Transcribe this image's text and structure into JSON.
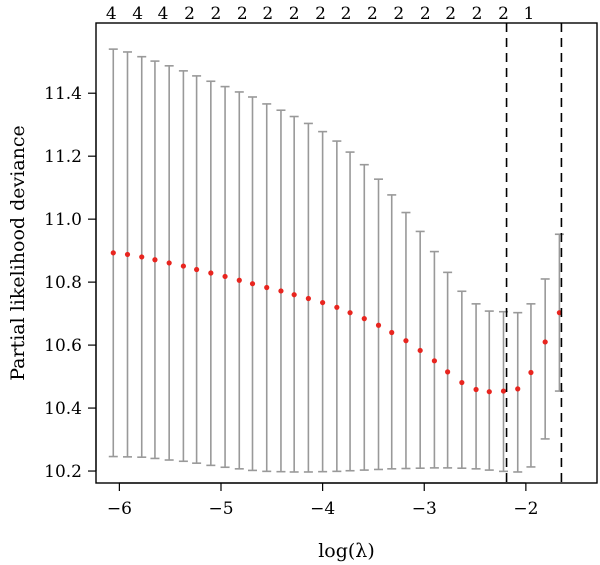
{
  "chart_data": {
    "type": "scatter",
    "title": "",
    "xlabel": "log(λ)",
    "ylabel": "Partial likelihood deviance",
    "xlim": [
      -6.23,
      -1.3
    ],
    "ylim": [
      10.162,
      11.623
    ],
    "x_ticks": [
      -6,
      -5,
      -4,
      -3,
      -2
    ],
    "x_tick_labels": [
      "−6",
      "−5",
      "−4",
      "−3",
      "−2"
    ],
    "y_ticks": [
      10.2,
      10.4,
      10.6,
      10.8,
      11.0,
      11.2,
      11.4
    ],
    "y_tick_labels": [
      "10.2",
      "10.4",
      "10.6",
      "10.8",
      "11.0",
      "11.2",
      "11.4"
    ],
    "top_axis": {
      "positions": [
        -6.08,
        -5.82,
        -5.57,
        -5.31,
        -5.05,
        -4.79,
        -4.54,
        -4.28,
        -4.02,
        -3.77,
        -3.51,
        -3.25,
        -2.99,
        -2.74,
        -2.48,
        -2.22,
        -1.97
      ],
      "labels": [
        "4",
        "4",
        "4",
        "2",
        "2",
        "2",
        "2",
        "2",
        "2",
        "2",
        "2",
        "2",
        "2",
        "2",
        "2",
        "2",
        "1"
      ]
    },
    "vlines": [
      -2.19,
      -1.65
    ],
    "grid": false,
    "colors": {
      "point": "#e8251f",
      "errorbar": "#999999",
      "axis": "#000000",
      "vline": "#000000"
    },
    "series": [
      {
        "x": [
          -6.06,
          -5.92,
          -5.78,
          -5.65,
          -5.51,
          -5.37,
          -5.24,
          -5.1,
          -4.96,
          -4.82,
          -4.69,
          -4.55,
          -4.41,
          -4.28,
          -4.14,
          -4.0,
          -3.86,
          -3.73,
          -3.59,
          -3.45,
          -3.32,
          -3.18,
          -3.04,
          -2.9,
          -2.77,
          -2.63,
          -2.49,
          -2.36,
          -2.22,
          -2.08,
          -1.95,
          -1.81,
          -1.67
        ],
        "y": [
          10.893,
          10.888,
          10.88,
          10.871,
          10.861,
          10.851,
          10.84,
          10.829,
          10.818,
          10.806,
          10.795,
          10.783,
          10.772,
          10.76,
          10.748,
          10.735,
          10.72,
          10.703,
          10.684,
          10.663,
          10.64,
          10.614,
          10.583,
          10.55,
          10.515,
          10.481,
          10.459,
          10.452,
          10.454,
          10.461,
          10.513,
          10.61,
          10.703
        ],
        "lower": [
          10.246,
          10.245,
          10.244,
          10.24,
          10.235,
          10.231,
          10.225,
          10.218,
          10.212,
          10.207,
          10.202,
          10.199,
          10.198,
          10.197,
          10.197,
          10.198,
          10.199,
          10.201,
          10.203,
          10.205,
          10.207,
          10.208,
          10.209,
          10.21,
          10.21,
          10.209,
          10.207,
          10.203,
          10.199,
          10.197,
          10.213,
          10.302,
          10.454
        ],
        "upper": [
          11.54,
          11.531,
          11.516,
          11.502,
          11.487,
          11.471,
          11.455,
          11.438,
          11.421,
          11.404,
          11.388,
          11.366,
          11.346,
          11.326,
          11.304,
          11.278,
          11.248,
          11.213,
          11.173,
          11.127,
          11.077,
          11.021,
          10.961,
          10.897,
          10.831,
          10.771,
          10.731,
          10.708,
          10.706,
          10.703,
          10.731,
          10.81,
          10.952
        ]
      }
    ]
  }
}
